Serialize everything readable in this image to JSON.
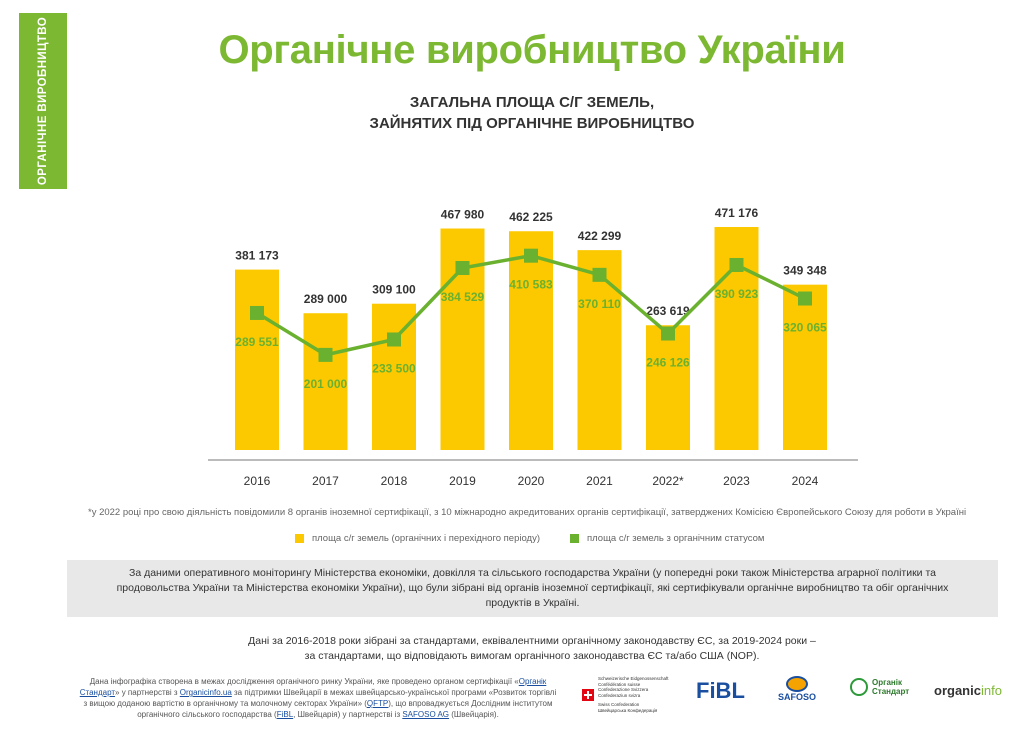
{
  "side_tab": "ОРГАНІЧНЕ ВИРОБНИЦТВО",
  "title": "Органічне виробництво України",
  "subtitle_line1": "ЗАГАЛЬНА ПЛОЩА С/Г ЗЕМЕЛЬ,",
  "subtitle_line2": "ЗАЙНЯТИХ ПІД ОРГАНІЧНЕ ВИРОБНИЦТВО",
  "chart_data": {
    "type": "bar",
    "categories": [
      "2016",
      "2017",
      "2018",
      "2019",
      "2020",
      "2021",
      "2022*",
      "2023",
      "2024"
    ],
    "series": [
      {
        "name": "площа с/г земель (органічних і перехідного періоду)",
        "type": "bar",
        "color": "#fcc900",
        "values": [
          381173,
          289000,
          309100,
          467980,
          462225,
          422299,
          263619,
          471176,
          349348
        ],
        "labels": [
          "381 173",
          "289 000",
          "309 100",
          "467 980",
          "462 225",
          "422 299",
          "263 619",
          "471 176",
          "349 348"
        ]
      },
      {
        "name": "площа с/г земель з органічним статусом",
        "type": "line",
        "color": "#6ab12f",
        "values": [
          289551,
          201000,
          233500,
          384529,
          410583,
          370110,
          246126,
          390923,
          320065
        ],
        "labels": [
          "289 551",
          "201 000",
          "233 500",
          "384 529",
          "410 583",
          "370 110",
          "246 126",
          "390 923",
          "320 065"
        ]
      }
    ],
    "legend": "bottom"
  },
  "footnote": "*у 2022 році про свою діяльність повідомили 8 органів іноземної сертифікації, з 10 міжнародно акредитованих органів сертифікації, затверджених Комісією Європейського Союзу для роботи в Україні",
  "source_text": "За даними оперативного моніторингу Міністерства економіки, довкілля та сільського господарства України (у попередні роки також Міністерства аграрної політики та продовольства України та Міністерства економіки України), що були зібрані від органів іноземної сертифікації, які сертифікували органічне виробництво та обіг органічних продуктів в Україні.",
  "data_note_line1": "Дані за 2016-2018 роки зібрані за стандартами, еквівалентними органічному законодавству ЄС, за 2019-2024 роки –",
  "data_note_line2": "за стандартами, що відповідають вимогам органічного законодавства ЄС та/або США (NOP).",
  "credits": {
    "t1": "Дана інфографіка створена в межах дослідження органічного ринку України, яке проведено органом сертифікації «",
    "l1": "Органік Стандарт",
    "t2": "» у партнерстві з ",
    "l2": "Organicinfo.ua",
    "t3": " за підтримки Швейцарії в межах швейцарсько-української програми «Розвиток торгівлі з вищою доданою вартістю в органічному та молочному секторах України» (",
    "l3": "QFTP",
    "t4": "), що впроваджується Дослідним інститутом органічного сільського господарства (",
    "l4": "FiBL",
    "t5": ", Швейцарія) у партнерстві із ",
    "l5": "SAFOSO AG",
    "t6": " (Швейцарія)."
  },
  "logos": {
    "swiss_lines": [
      "Schweizerische Eidgenossenschaft",
      "Confédération suisse",
      "Confederazione Svizzera",
      "Confederaziun svizra",
      "Swiss Confederation",
      "Швейцарська Конфедерація"
    ],
    "fibl": "FiBL",
    "safoso": "SAFOSO",
    "organic_standard_1": "Органік",
    "organic_standard_2": "Стандарт",
    "organicinfo_a": "organic",
    "organicinfo_b": "info"
  }
}
